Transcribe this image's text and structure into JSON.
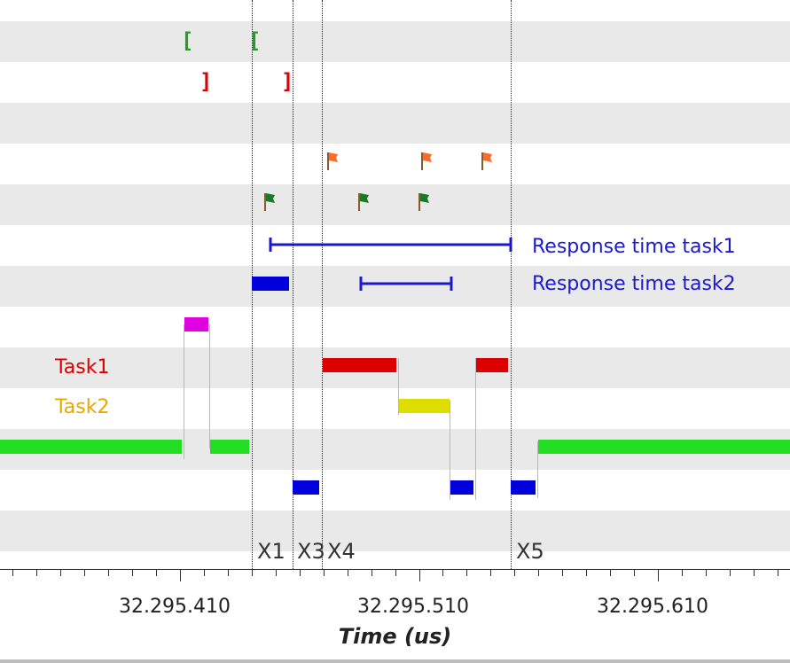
{
  "legend": {
    "task1": "Task1",
    "task2": "Task2"
  },
  "annotations": {
    "response_task1": "Response time task1",
    "response_task2": "Response time task2"
  },
  "cursors": [
    "X1",
    "X3",
    "X4",
    "X5"
  ],
  "axis": {
    "title": "Time  (us)",
    "tick_labels": [
      "32.295.410",
      "32.295.510",
      "32.295.610"
    ]
  },
  "markers": {
    "start_bracket": "[",
    "end_bracket": "]"
  },
  "icons": {
    "start_marker": "green-bracket",
    "end_marker": "red-bracket",
    "flag_orange": "orange-flag",
    "flag_green": "green-flag"
  },
  "colors": {
    "task1": "#dd0000",
    "task2": "#e8a800",
    "idle": "#22dd22",
    "isr": "#0000dd",
    "other": "#e000e0",
    "task2_bar": "#dddd00",
    "response": "#1a1acc",
    "flag_orange": "#ff6a2a",
    "flag_green": "#1a7a2a"
  }
}
